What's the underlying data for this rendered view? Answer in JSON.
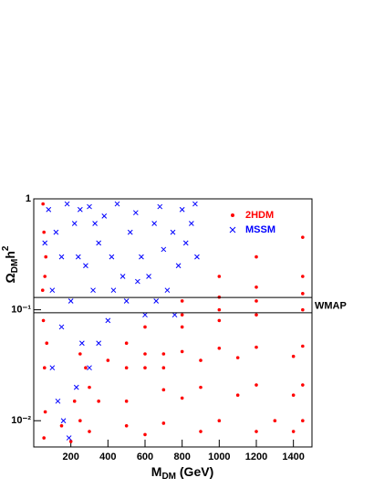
{
  "chart_data": {
    "type": "scatter",
    "xlabel": {
      "main": "M",
      "sub": "DM",
      "rest": " (GeV)"
    },
    "ylabel": {
      "main": "Ω",
      "sub": "DM",
      "rest": "h",
      "sup": "2"
    },
    "xlim": [
      0,
      1500
    ],
    "ylim": [
      0.0058,
      1
    ],
    "log_y": true,
    "xticks": [
      200,
      400,
      600,
      800,
      1000,
      1200,
      1400
    ],
    "yticks": [
      {
        "value": 0.01,
        "label": "10⁻²"
      },
      {
        "value": 0.1,
        "label": "10⁻¹"
      },
      1
    ],
    "hlines": {
      "values": [
        0.094,
        0.129
      ],
      "label": "WMAP"
    },
    "legend": "upper right",
    "series": [
      {
        "name": "2HDM",
        "color": "#ff0000",
        "marker": "dot",
        "x": [
          50,
          55,
          60,
          52,
          58,
          62,
          55,
          65,
          70,
          48,
          300,
          400,
          500,
          600,
          800,
          1000,
          1200,
          1450,
          350,
          500,
          600,
          800,
          1000,
          1200,
          1450,
          700,
          800,
          1000,
          1200,
          1450,
          1000,
          1200,
          1450,
          600,
          800,
          1000,
          1200,
          1450,
          700,
          900,
          1100,
          1400,
          500,
          700,
          900,
          1200,
          1450,
          800,
          1100,
          1400,
          300,
          500,
          700,
          1000,
          1300,
          1450,
          600,
          900,
          1200,
          1400,
          200,
          250,
          150,
          220,
          280,
          250
        ],
        "values": [
          0.9,
          0.5,
          0.2,
          0.08,
          0.03,
          0.012,
          0.007,
          0.3,
          0.05,
          0.15,
          0.02,
          0.035,
          0.05,
          0.07,
          0.12,
          0.2,
          0.3,
          0.45,
          0.015,
          0.03,
          0.04,
          0.09,
          0.13,
          0.16,
          0.2,
          0.04,
          0.07,
          0.1,
          0.12,
          0.14,
          0.08,
          0.09,
          0.1,
          0.03,
          0.042,
          0.045,
          0.046,
          0.047,
          0.03,
          0.035,
          0.037,
          0.038,
          0.015,
          0.019,
          0.02,
          0.021,
          0.021,
          0.016,
          0.017,
          0.017,
          0.008,
          0.009,
          0.0095,
          0.01,
          0.01,
          0.01,
          0.0075,
          0.008,
          0.008,
          0.008,
          0.0065,
          0.01,
          0.009,
          0.015,
          0.03,
          0.04
        ]
      },
      {
        "name": "MSSM",
        "color": "#0000ff",
        "marker": "cross",
        "x": [
          80,
          120,
          150,
          180,
          200,
          220,
          250,
          260,
          280,
          300,
          320,
          350,
          380,
          400,
          420,
          450,
          480,
          500,
          520,
          550,
          580,
          600,
          620,
          650,
          680,
          700,
          720,
          750,
          780,
          800,
          820,
          850,
          870,
          100,
          130,
          160,
          190,
          230,
          300,
          350,
          100,
          60,
          150,
          240,
          330,
          430,
          560,
          660,
          880,
          760
        ],
        "values": [
          0.8,
          0.5,
          0.3,
          0.9,
          0.12,
          0.6,
          0.8,
          0.05,
          0.25,
          0.85,
          0.15,
          0.4,
          0.7,
          0.08,
          0.3,
          0.9,
          0.2,
          0.12,
          0.5,
          0.75,
          0.3,
          0.09,
          0.2,
          0.6,
          0.85,
          0.35,
          0.15,
          0.5,
          0.25,
          0.8,
          0.4,
          0.6,
          0.9,
          0.03,
          0.015,
          0.01,
          0.007,
          0.02,
          0.03,
          0.05,
          0.15,
          0.4,
          0.07,
          0.3,
          0.6,
          0.15,
          0.18,
          0.12,
          0.3,
          0.09
        ]
      }
    ]
  }
}
